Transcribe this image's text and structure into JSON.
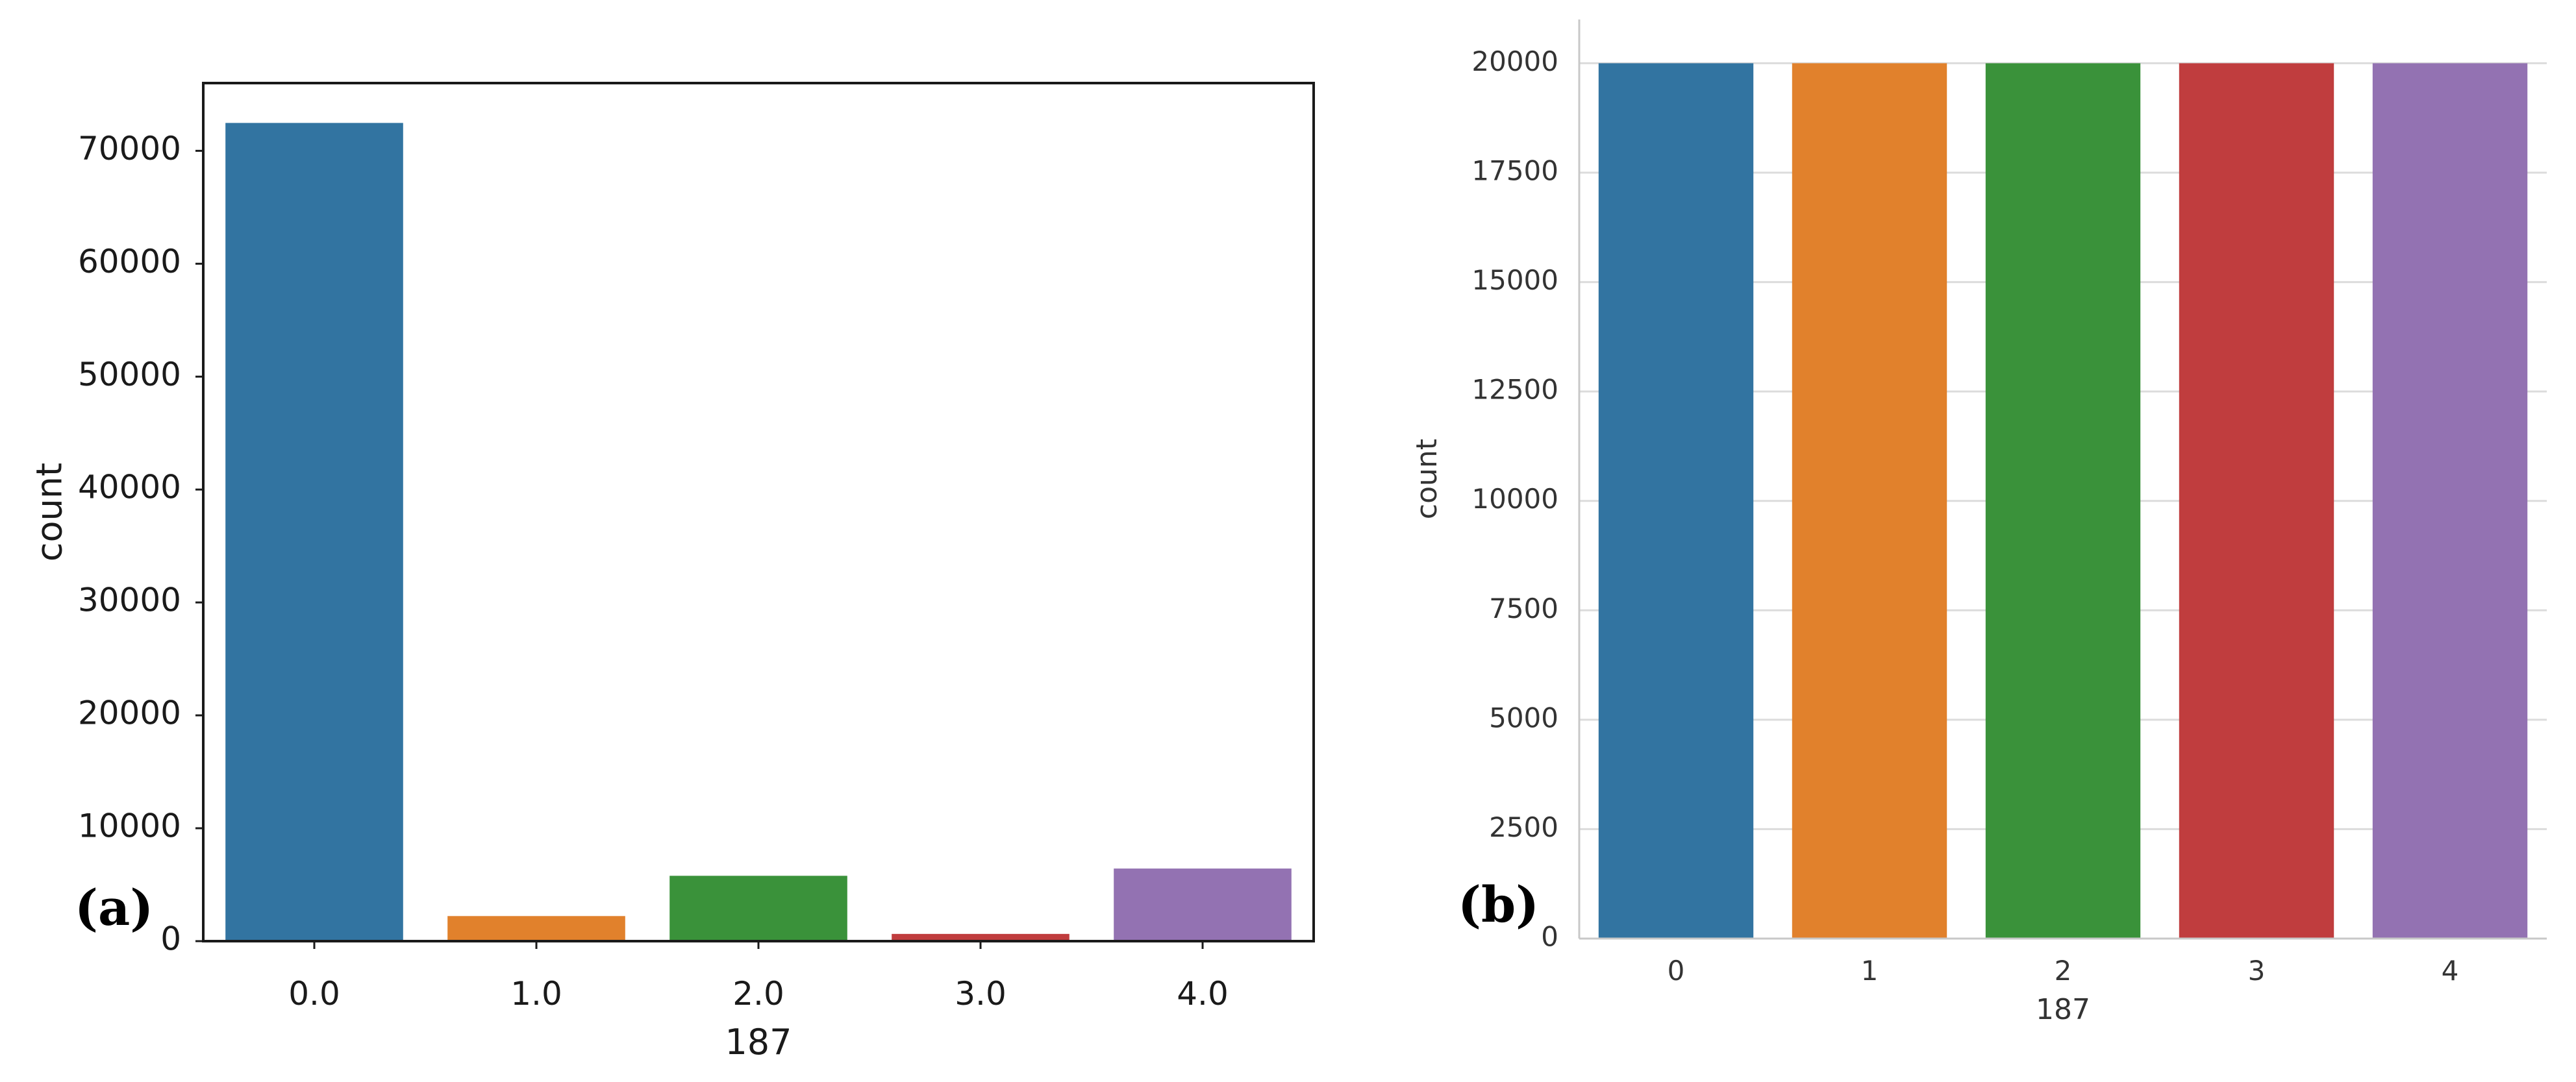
{
  "chart_data": [
    {
      "panel_label": "(a)",
      "type": "bar",
      "categories": [
        "0.0",
        "1.0",
        "2.0",
        "3.0",
        "4.0"
      ],
      "values": [
        72470,
        2223,
        5788,
        641,
        6431
      ],
      "xlabel": "187",
      "ylabel": "count",
      "ylim": [
        0,
        76000
      ],
      "yticks": [
        0,
        10000,
        20000,
        30000,
        40000,
        50000,
        60000,
        70000
      ],
      "colors": [
        "#3274a1",
        "#e1812c",
        "#3a923a",
        "#c03d3e",
        "#9372b2"
      ],
      "grid": false,
      "frame": "full box"
    },
    {
      "panel_label": "(b)",
      "type": "bar",
      "categories": [
        "0",
        "1",
        "2",
        "3",
        "4"
      ],
      "values": [
        20000,
        20000,
        20000,
        20000,
        20000
      ],
      "xlabel": "187",
      "ylabel": "count",
      "ylim": [
        0,
        21000
      ],
      "yticks": [
        0,
        2500,
        5000,
        7500,
        10000,
        12500,
        15000,
        17500,
        20000
      ],
      "colors": [
        "#3274a1",
        "#e1812c",
        "#3a923a",
        "#c03d3e",
        "#9372b2"
      ],
      "grid": true,
      "frame": "left and bottom spines"
    }
  ]
}
